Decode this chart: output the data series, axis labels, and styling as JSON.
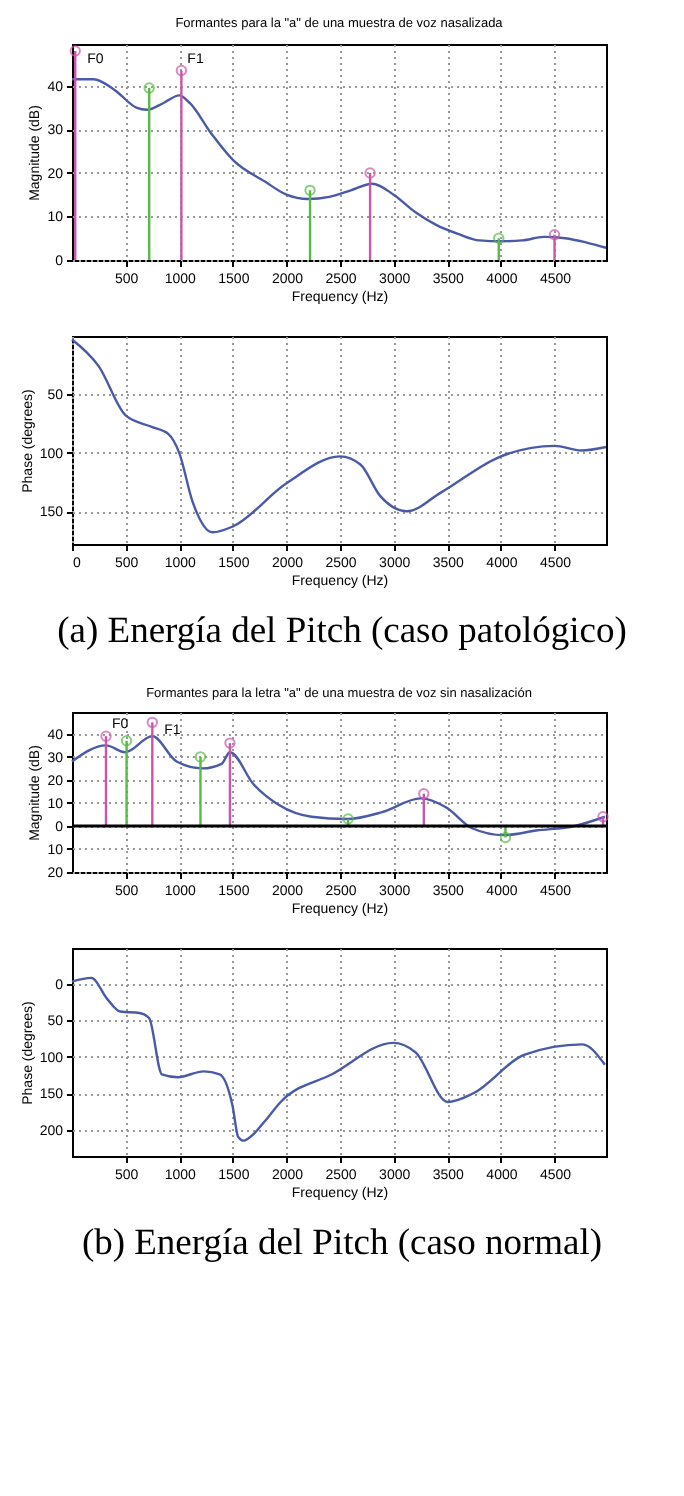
{
  "chart_data": [
    {
      "type": "line",
      "title": "Formantes para la \"a\" de una muestra de voz nasalizada",
      "xlabel": "Frequency (Hz)",
      "ylabel": "Magnitude (dB)",
      "xlim": [
        0,
        4980
      ],
      "ylim": [
        0,
        49.6
      ],
      "xticks": [
        500,
        1000,
        1500,
        2000,
        2500,
        3000,
        3500,
        4000,
        4500
      ],
      "yticks": [
        0,
        10,
        20,
        30,
        40
      ],
      "grid": true,
      "series": [
        {
          "type": "line",
          "color": "#4a5aa8",
          "x": [
            0,
            200,
            400,
            600,
            700,
            850,
            1000,
            1100,
            1300,
            1500,
            1800,
            2000,
            2200,
            2400,
            2600,
            2800,
            3000,
            3200,
            3400,
            3600,
            3800,
            4000,
            4200,
            4400,
            4600,
            4800,
            4980
          ],
          "values": [
            41.5,
            41.5,
            39,
            35,
            34.5,
            36,
            37.8,
            36,
            29,
            23,
            18,
            15,
            14,
            14.5,
            16,
            17.5,
            15,
            11,
            8,
            6,
            4.5,
            4.3,
            4.5,
            5.3,
            5,
            4,
            2.8
          ]
        },
        {
          "type": "lollipop",
          "marker": "circle",
          "color": "#cc55aa",
          "x": [
            30,
            1020,
            2780,
            4500
          ],
          "values": [
            48,
            43.5,
            20,
            5.8
          ]
        },
        {
          "type": "lollipop",
          "marker": "circle",
          "color": "#55bb44",
          "x": [
            720,
            2220,
            3980
          ],
          "values": [
            39.5,
            16,
            5
          ]
        }
      ],
      "annotations": [
        {
          "text": "F0",
          "x": 30,
          "y": 48
        },
        {
          "text": "F1",
          "x": 1020,
          "y": 43.5
        }
      ]
    },
    {
      "type": "line",
      "xlabel": "Frequency (Hz)",
      "ylabel": "Phase (degrees)",
      "xlim": [
        0,
        4980
      ],
      "ylim": [
        178,
        0
      ],
      "xticks": [
        0,
        500,
        1000,
        1500,
        2000,
        2500,
        3000,
        3500,
        4000,
        4500
      ],
      "yticks": [
        50,
        100,
        150
      ],
      "grid": true,
      "series": [
        {
          "type": "line",
          "color": "#4a5aa8",
          "x": [
            0,
            250,
            500,
            750,
            900,
            1000,
            1125,
            1310,
            1500,
            2000,
            2500,
            2690,
            2875,
            3125,
            3440,
            4000,
            4500,
            4750,
            4980
          ],
          "values": [
            3,
            26,
            68,
            78,
            84,
            100,
            142,
            168,
            163,
            126,
            103,
            110,
            137,
            150,
            134,
            103,
            94,
            98,
            95
          ]
        }
      ],
      "annotations": [
        "(a) Energía del Pitch (caso patológico)"
      ]
    },
    {
      "type": "line",
      "title": "Formantes para la letra \"a\" de una muestra de voz sin nasalización",
      "xlabel": "Frequency (Hz)",
      "ylabel": "Magnitude (dB)",
      "xlim": [
        0,
        4980
      ],
      "ylim": [
        -20,
        49.5
      ],
      "xticks": [
        500,
        1000,
        1500,
        2000,
        2500,
        3000,
        3500,
        4000,
        4500
      ],
      "yticks": [
        {
          "value": -20,
          "label": "20"
        },
        {
          "value": -10,
          "label": "10"
        },
        0,
        10,
        20,
        30,
        40
      ],
      "grid": true,
      "ref_lines": [
        {
          "axis": "y",
          "value": 0,
          "color": "#000000"
        }
      ],
      "series": [
        {
          "type": "line",
          "color": "#4a5aa8",
          "x": [
            0,
            317,
            497,
            749,
            976,
            1216,
            1395,
            1473,
            1695,
            1934,
            2234,
            2563,
            2892,
            3251,
            3491,
            3731,
            4030,
            4330,
            4689,
            4970
          ],
          "values": [
            28,
            35,
            32,
            39,
            28,
            25,
            27,
            32,
            18,
            9,
            4,
            3,
            6,
            12,
            8,
            -1,
            -4,
            -2,
            0,
            4
          ]
        },
        {
          "type": "lollipop",
          "marker": "circle",
          "color": "#cc55aa",
          "x": [
            317,
            749,
            1473,
            3281,
            4952
          ],
          "values": [
            39,
            45,
            36,
            14,
            4
          ]
        },
        {
          "type": "lollipop",
          "marker": "circle",
          "color": "#55bb44",
          "x": [
            509,
            1198,
            2575,
            4042
          ],
          "values": [
            37,
            30,
            3,
            -5
          ]
        }
      ],
      "annotations": [
        {
          "text": "F0",
          "x": 317,
          "y": 39
        },
        {
          "text": "F1",
          "x": 749,
          "y": 45
        }
      ]
    },
    {
      "type": "line",
      "xlabel": "Frequency (Hz)",
      "ylabel": "Phase (degrees)",
      "xlim": [
        0,
        4980
      ],
      "ylim": [
        236,
        -49
      ],
      "xticks": [
        500,
        1000,
        1500,
        2000,
        2500,
        3000,
        3500,
        4000,
        4500
      ],
      "yticks": [
        0,
        50,
        100,
        150,
        200
      ],
      "grid": true,
      "series": [
        {
          "type": "line",
          "color": "#4a5aa8",
          "x": [
            0,
            180,
            329,
            449,
            629,
            719,
            838,
            988,
            1228,
            1377,
            1497,
            1550,
            1600,
            1700,
            1800,
            1946,
            2425,
            2994,
            3204,
            3503,
            3743,
            4222,
            4760,
            4970
          ],
          "values": [
            -3,
            -8,
            21,
            38,
            40,
            47,
            124,
            128,
            120,
            124,
            167,
            210,
            215,
            205,
            188,
            162,
            124,
            81,
            94,
            162,
            150,
            97,
            83,
            111
          ]
        }
      ],
      "annotations": [
        "(b) Energía del Pitch (caso normal)"
      ]
    }
  ]
}
